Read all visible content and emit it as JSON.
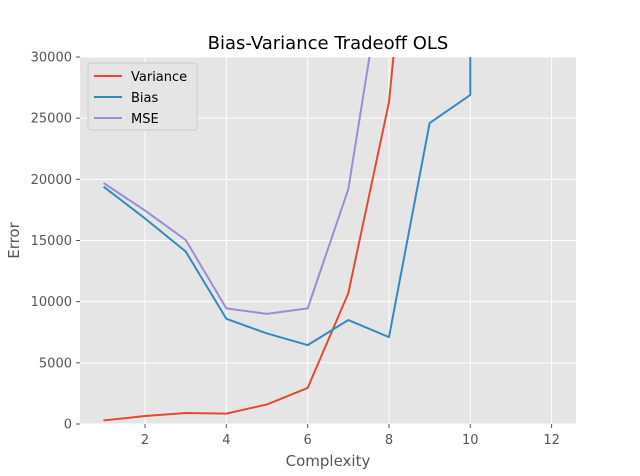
{
  "chart_data": {
    "type": "line",
    "title": "Bias-Variance Tradeoff OLS",
    "xlabel": "Complexity",
    "ylabel": "Error",
    "xlim": [
      0.4,
      12.6
    ],
    "ylim": [
      0,
      30000
    ],
    "xticks": [
      2,
      4,
      6,
      8,
      10,
      12
    ],
    "yticks": [
      0,
      5000,
      10000,
      15000,
      20000,
      25000,
      30000
    ],
    "grid": true,
    "legend_position": "top-left",
    "background": "#e5e5e5",
    "series": [
      {
        "name": "Variance",
        "color": "#e24a33",
        "x": [
          1,
          2,
          3,
          4,
          5,
          6,
          7,
          8,
          9
        ],
        "y": [
          300,
          650,
          900,
          850,
          1600,
          2950,
          10700,
          26300,
          60000
        ]
      },
      {
        "name": "Bias",
        "color": "#348abd",
        "x": [
          1,
          2,
          3,
          4,
          5,
          6,
          7,
          8,
          9,
          10,
          10
        ],
        "y": [
          19350,
          16800,
          14100,
          8600,
          7400,
          6450,
          8500,
          7100,
          24600,
          26900,
          60000
        ]
      },
      {
        "name": "MSE",
        "color": "#988ed5",
        "x": [
          1,
          2,
          3,
          4,
          5,
          6,
          7,
          8
        ],
        "y": [
          19650,
          17450,
          15050,
          9450,
          9000,
          9450,
          19200,
          40000
        ]
      }
    ]
  }
}
